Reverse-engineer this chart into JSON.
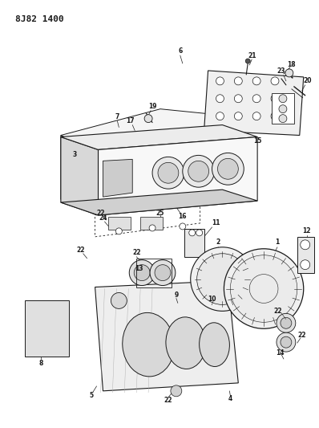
{
  "title": "8J82 1400",
  "bg": "#ffffff",
  "lc": "#1a1a1a",
  "tc": "#1a1a1a",
  "title_font": 8,
  "label_font": 5.5
}
